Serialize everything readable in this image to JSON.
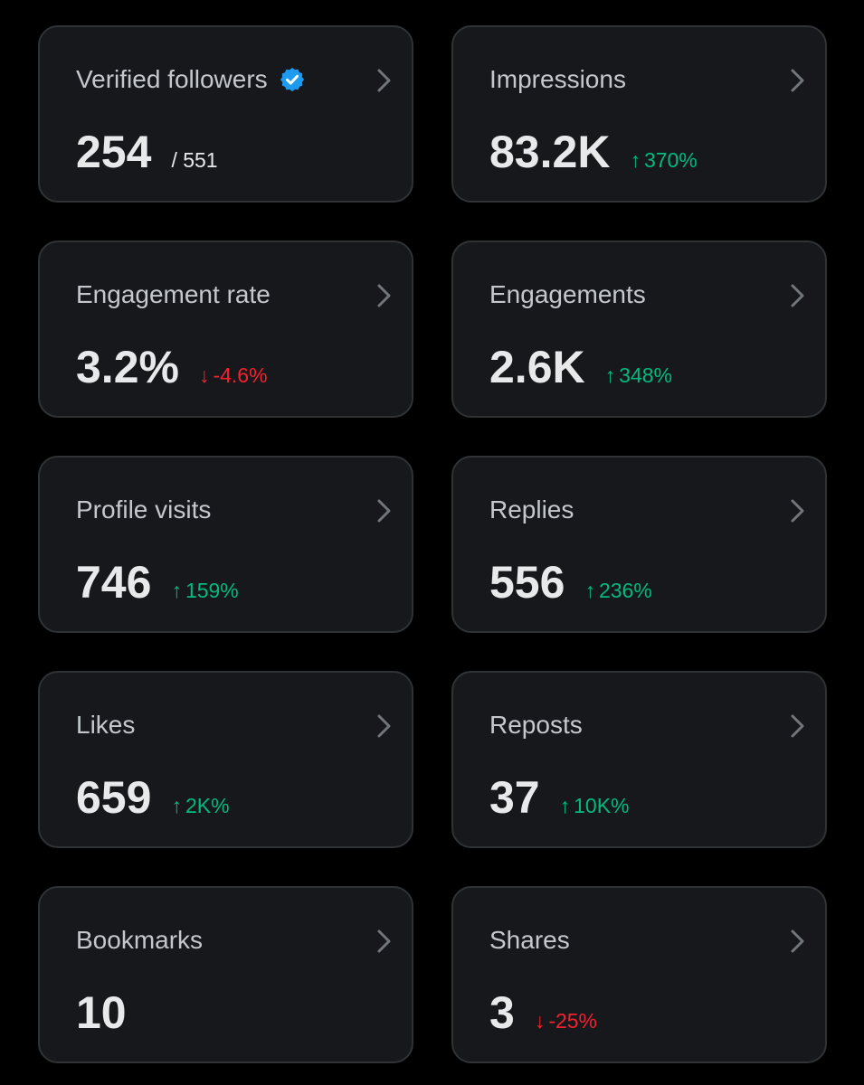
{
  "colors": {
    "background": "#000000",
    "card": "#16181c",
    "card_border": "#2f3336",
    "verified_badge": "#1d9bf0",
    "up": "#00ba7c",
    "down": "#f4212e"
  },
  "cards": [
    {
      "id": "verified-followers",
      "title": "Verified followers",
      "value": "254",
      "sub": "/ 551",
      "verified_icon": "verified-badge-icon"
    },
    {
      "id": "impressions",
      "title": "Impressions",
      "value": "83.2K",
      "change": {
        "direction": "up",
        "arrow": "↑",
        "text": "370%"
      }
    },
    {
      "id": "engagement-rate",
      "title": "Engagement rate",
      "value": "3.2%",
      "change": {
        "direction": "down",
        "arrow": "↓",
        "text": "-4.6%"
      }
    },
    {
      "id": "engagements",
      "title": "Engagements",
      "value": "2.6K",
      "change": {
        "direction": "up",
        "arrow": "↑",
        "text": "348%"
      }
    },
    {
      "id": "profile-visits",
      "title": "Profile visits",
      "value": "746",
      "change": {
        "direction": "up",
        "arrow": "↑",
        "text": "159%"
      }
    },
    {
      "id": "replies",
      "title": "Replies",
      "value": "556",
      "change": {
        "direction": "up",
        "arrow": "↑",
        "text": "236%"
      }
    },
    {
      "id": "likes",
      "title": "Likes",
      "value": "659",
      "change": {
        "direction": "up",
        "arrow": "↑",
        "text": "2K%"
      }
    },
    {
      "id": "reposts",
      "title": "Reposts",
      "value": "37",
      "change": {
        "direction": "up",
        "arrow": "↑",
        "text": "10K%"
      }
    },
    {
      "id": "bookmarks",
      "title": "Bookmarks",
      "value": "10"
    },
    {
      "id": "shares",
      "title": "Shares",
      "value": "3",
      "change": {
        "direction": "down",
        "arrow": "↓",
        "text": "-25%"
      }
    }
  ]
}
